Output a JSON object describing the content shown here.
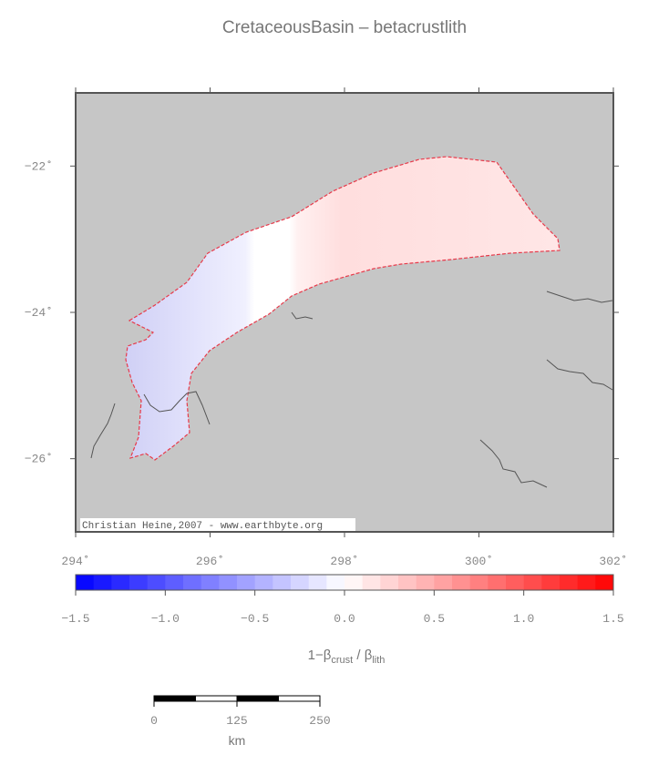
{
  "title": "CretaceousBasin – betacrustlith",
  "map": {
    "xlim": [
      294,
      302
    ],
    "ylim": [
      -27,
      -21
    ],
    "lon_ticks": [
      {
        "value": 294,
        "label": "294˚"
      },
      {
        "value": 296,
        "label": "296˚"
      },
      {
        "value": 298,
        "label": "298˚"
      },
      {
        "value": 300,
        "label": "300˚"
      },
      {
        "value": 302,
        "label": "302˚"
      }
    ],
    "lat_ticks": [
      {
        "value": -22,
        "label": "−22˚"
      },
      {
        "value": -24,
        "label": "−24˚"
      },
      {
        "value": -26,
        "label": "−26˚"
      }
    ],
    "credit": "Christian Heine,2007 - www.earthbyte.org"
  },
  "colorbar": {
    "ticks": [
      {
        "value": -1.5,
        "label": "−1.5"
      },
      {
        "value": -1.0,
        "label": "−1.0"
      },
      {
        "value": -0.5,
        "label": "−0.5"
      },
      {
        "value": 0.0,
        "label": "0.0"
      },
      {
        "value": 0.5,
        "label": "0.5"
      },
      {
        "value": 1.0,
        "label": "1.0"
      },
      {
        "value": 1.5,
        "label": "1.5"
      }
    ],
    "label": {
      "prefix": "1−β",
      "sub1": "crust",
      "mid": " / β",
      "sub2": "lith"
    }
  },
  "scale_bar": {
    "ticks": [
      0,
      125,
      250
    ],
    "unit": "km"
  }
}
